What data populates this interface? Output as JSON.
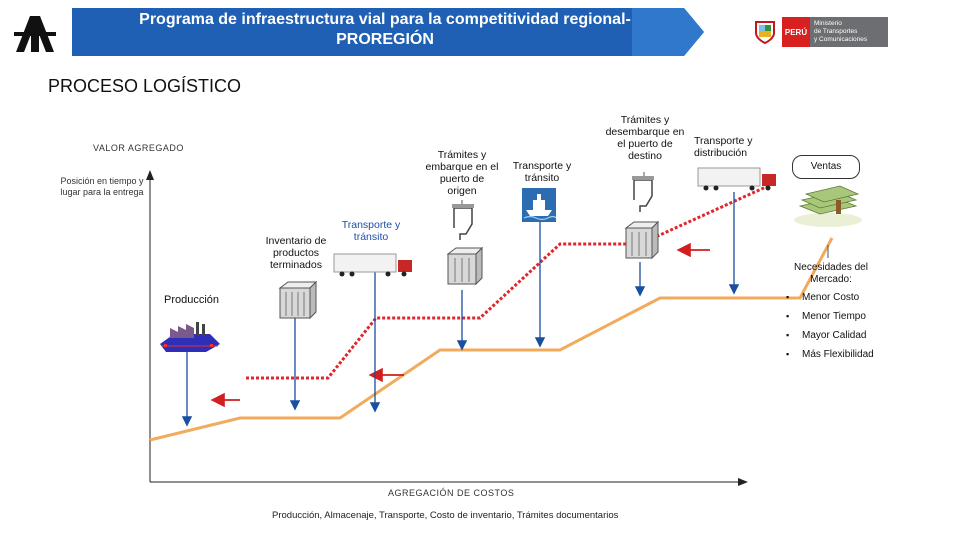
{
  "header": {
    "banner_line1": "Programa de infraestructura vial para la competitividad regional-",
    "banner_line2": "PROREGIÓN",
    "ministry_country": "PERÚ",
    "ministry_line1": "Ministerio",
    "ministry_line2": "de Transportes",
    "ministry_line3": "y Comunicaciones",
    "banner_color": "#1f5fb4"
  },
  "page_title": "PROCESO LOGÍSTICO",
  "axes": {
    "y_label_top": "VALOR AGREGADO",
    "y_label_side": "Posición en tiempo y lugar para la entrega",
    "x_label": "AGREGACIÓN DE COSTOS",
    "x_note": "Producción, Almacenaje, Transporte, Costo de inventario, Trámites documentarios"
  },
  "stages": {
    "produccion": "Producción",
    "inventario": "Inventario de productos terminados",
    "transporte_1": "Transporte y tránsito",
    "tramites_origen": "Trámites y embarque en el puerto de origen",
    "transporte_2": "Transporte y tránsito",
    "tramites_destino": "Trámites y desembarque en el puerto de destino",
    "transporte_3": "Transporte y distribución",
    "ventas": "Ventas"
  },
  "needs": {
    "title": "Necesidades del Mercado:",
    "items": [
      "Menor Costo",
      "Menor Tiempo",
      "Mayor Calidad",
      "Más Flexibilidad"
    ]
  },
  "colors": {
    "value_line": "#f2ab5c",
    "cost_line": "#e0262d",
    "arrow": "#d11f1f"
  },
  "icons": [
    "factory-icon",
    "warehouse-icon",
    "truck-icon",
    "ship-icon",
    "crane-icon",
    "money-icon"
  ]
}
